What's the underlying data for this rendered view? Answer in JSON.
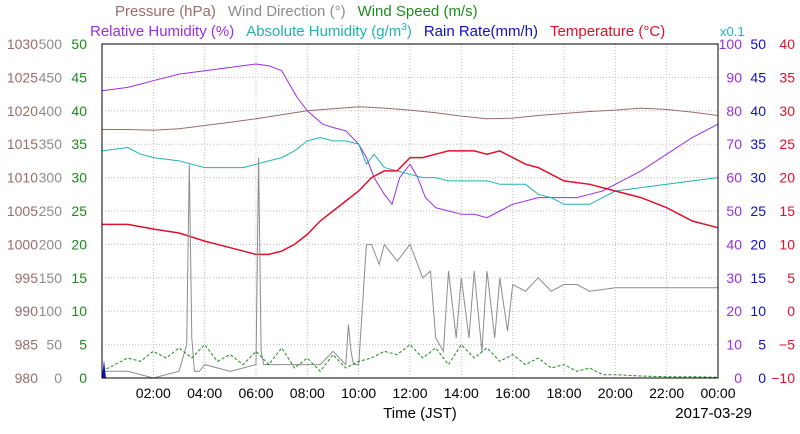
{
  "chart_data": {
    "type": "line",
    "title_rows": [
      [
        {
          "key": "pressure",
          "text": "Pressure (hPa)",
          "color": "#9b6b6b"
        },
        {
          "key": "wind_direction",
          "text": "Wind Direction (°)",
          "color": "#8c8c8c"
        },
        {
          "key": "wind_speed",
          "text": "Wind Speed (m/s)",
          "color": "#1a8c1a"
        }
      ],
      [
        {
          "key": "relative_humidity",
          "text": "Relative Humidity (%)",
          "color": "#9c2ee0"
        },
        {
          "key": "absolute_humidity",
          "text": "Absolute Humidity (g/m",
          "sup": "3",
          "tail": ")",
          "color": "#20b2b2"
        },
        {
          "key": "rain_rate",
          "text": "Rain Rate(mm/h)",
          "color": "#1010c0"
        },
        {
          "key": "temperature",
          "text": "Temperature (°C)",
          "color": "#e0102a"
        }
      ]
    ],
    "rain_multiplier": "x0.1",
    "xlabel": "Time (JST)",
    "date": "2017-03-29",
    "x_range_hours": [
      0,
      24
    ],
    "x_ticks": [
      "02:00",
      "04:00",
      "06:00",
      "08:00",
      "10:00",
      "12:00",
      "14:00",
      "16:00",
      "18:00",
      "20:00",
      "22:00",
      "00:00"
    ],
    "grid": true,
    "axes": [
      {
        "key": "pressure",
        "side": "left",
        "color": "#9b6b6b",
        "min": 980,
        "max": 1030,
        "ticks": [
          "980",
          "985",
          "990",
          "995",
          "1000",
          "1005",
          "1010",
          "1015",
          "1020",
          "1025",
          "1030"
        ]
      },
      {
        "key": "wind_direction",
        "side": "left",
        "color": "#8c8c8c",
        "min": 0,
        "max": 500,
        "ticks": [
          "0",
          "50",
          "100",
          "150",
          "200",
          "250",
          "300",
          "350",
          "400",
          "450",
          "500"
        ]
      },
      {
        "key": "wind_speed",
        "side": "left",
        "color": "#1a8c1a",
        "min": 0,
        "max": 50,
        "ticks": [
          "0",
          "5",
          "10",
          "15",
          "20",
          "25",
          "30",
          "35",
          "40",
          "45",
          "50"
        ]
      },
      {
        "key": "relative_humidity",
        "side": "right",
        "color": "#9c2ee0",
        "min": 0,
        "max": 100,
        "ticks": [
          "0",
          "10",
          "20",
          "30",
          "40",
          "50",
          "60",
          "70",
          "80",
          "90",
          "100"
        ]
      },
      {
        "key": "rain_rate",
        "side": "right",
        "color": "#1010c0",
        "min": 0,
        "max": 50,
        "ticks": [
          "0",
          "5",
          "10",
          "15",
          "20",
          "25",
          "30",
          "35",
          "40",
          "45",
          "50"
        ]
      },
      {
        "key": "temperature",
        "side": "right",
        "color": "#e0102a",
        "min": -10,
        "max": 40,
        "ticks": [
          "−10",
          "−5",
          "0",
          "5",
          "10",
          "15",
          "20",
          "25",
          "30",
          "35",
          "40"
        ]
      }
    ],
    "series": [
      {
        "key": "pressure",
        "color": "#9b6b6b",
        "axis": "pressure",
        "x": [
          0,
          1,
          2,
          3,
          4,
          5,
          6,
          7,
          8,
          9,
          10,
          11,
          12,
          13,
          14,
          15,
          16,
          17,
          18,
          19,
          20,
          21,
          22,
          23,
          24
        ],
        "y": [
          1017.2,
          1017.2,
          1017.1,
          1017.3,
          1017.8,
          1018.3,
          1018.8,
          1019.4,
          1020.0,
          1020.3,
          1020.6,
          1020.4,
          1020.1,
          1019.7,
          1019.2,
          1018.8,
          1018.9,
          1019.3,
          1019.6,
          1019.9,
          1020.1,
          1020.4,
          1020.2,
          1019.8,
          1019.3
        ]
      },
      {
        "key": "relative_humidity",
        "color": "#9c2ee0",
        "axis": "relative_humidity",
        "x": [
          0,
          1,
          1.5,
          2,
          3,
          4,
          5,
          6,
          6.5,
          7,
          7.3,
          7.6,
          8,
          8.3,
          8.6,
          9,
          9.5,
          10,
          10.3,
          10.6,
          11,
          11.3,
          11.6,
          12,
          12.3,
          12.6,
          13,
          13.5,
          14,
          14.5,
          15,
          15.5,
          16,
          16.5,
          17,
          17.5,
          18,
          18.5,
          19,
          19.5,
          20,
          21,
          22,
          23,
          24
        ],
        "y": [
          86,
          87,
          88,
          89,
          91,
          92,
          93,
          94,
          93.5,
          92,
          88,
          84,
          80,
          78,
          76,
          75,
          74,
          70,
          66,
          60,
          55,
          52,
          60,
          64,
          60,
          54,
          51,
          50,
          49,
          49,
          48,
          50,
          52,
          53,
          54,
          54,
          54,
          54,
          55,
          56,
          58,
          62,
          67,
          72,
          76
        ]
      },
      {
        "key": "absolute_humidity",
        "color": "#20b2b2",
        "axis": "rain_rate",
        "x": [
          0,
          1,
          1.5,
          2,
          3,
          3.5,
          4,
          4.5,
          5,
          5.5,
          6,
          6.5,
          7,
          7.5,
          8,
          8.5,
          9,
          9.5,
          10,
          10.3,
          10.6,
          11,
          11.5,
          12,
          12.5,
          13,
          13.5,
          14,
          14.5,
          15,
          15.5,
          16,
          16.5,
          17,
          17.5,
          18,
          19,
          20,
          21,
          22,
          23,
          24
        ],
        "y": [
          34,
          34.5,
          33.5,
          33,
          32.5,
          32,
          31.5,
          31.5,
          31.5,
          31.5,
          32,
          32.5,
          33,
          34,
          35.5,
          36,
          35.5,
          35.5,
          35,
          32,
          33.5,
          31.5,
          31,
          30.5,
          30,
          30,
          29.5,
          29.5,
          29.5,
          29.5,
          29,
          29,
          29,
          27.5,
          27,
          26,
          26,
          28,
          28.5,
          29,
          29.5,
          30
        ]
      },
      {
        "key": "temperature",
        "color": "#e0102a",
        "axis": "temperature",
        "x": [
          0,
          1,
          2,
          3,
          4,
          5,
          6,
          6.5,
          7,
          7.5,
          8,
          8.5,
          9,
          9.5,
          10,
          10.5,
          11,
          11.5,
          12,
          12.5,
          13,
          13.5,
          14,
          14.5,
          15,
          15.5,
          16,
          16.5,
          17,
          18,
          19,
          20,
          21,
          22,
          23,
          24
        ],
        "y": [
          13,
          13,
          12.3,
          11.7,
          10.5,
          9.5,
          8.5,
          8.5,
          9,
          10,
          11.5,
          13.5,
          15,
          16.5,
          18,
          20,
          21,
          21,
          23,
          23,
          23.5,
          24,
          24,
          24,
          23.5,
          24,
          23,
          22,
          21.5,
          19.5,
          19,
          18,
          17,
          15.5,
          13.5,
          12.5
        ]
      },
      {
        "key": "wind_direction",
        "color": "#8c8c8c",
        "axis": "wind_direction",
        "x": [
          0,
          1,
          2,
          3,
          3.3,
          3.4,
          3.5,
          3.6,
          3.8,
          4,
          5,
          6,
          6.1,
          6.2,
          6.3,
          6.5,
          7,
          7.5,
          8,
          8.5,
          9,
          9.5,
          9.6,
          9.7,
          9.8,
          10,
          10.3,
          10.5,
          10.8,
          11,
          11.5,
          12,
          12.5,
          12.8,
          13,
          13.3,
          13.5,
          13.8,
          14,
          14.3,
          14.5,
          14.8,
          15,
          15.3,
          15.5,
          15.8,
          16,
          16.5,
          17,
          17.5,
          18,
          18.5,
          19,
          20,
          21,
          22,
          23,
          24
        ],
        "y": [
          10,
          10,
          0,
          10,
          50,
          320,
          60,
          10,
          10,
          20,
          10,
          20,
          330,
          40,
          20,
          20,
          20,
          20,
          20,
          20,
          40,
          20,
          80,
          40,
          20,
          20,
          200,
          200,
          170,
          200,
          175,
          200,
          150,
          160,
          60,
          40,
          160,
          60,
          150,
          60,
          160,
          40,
          160,
          60,
          150,
          70,
          140,
          130,
          150,
          130,
          140,
          140,
          130,
          135,
          135,
          135,
          135,
          135
        ]
      },
      {
        "key": "wind_speed",
        "color": "#1a8c1a",
        "axis": "wind_speed",
        "x": [
          0,
          0.5,
          1,
          1.5,
          2,
          2.5,
          3,
          3.5,
          4,
          4.5,
          5,
          5.5,
          6,
          6.5,
          7,
          7.5,
          8,
          8.5,
          9,
          9.5,
          10,
          10.5,
          11,
          11.5,
          12,
          12.5,
          13,
          13.5,
          14,
          14.5,
          15,
          15.5,
          16,
          16.5,
          17,
          17.5,
          18,
          18.5,
          19,
          19.5,
          20,
          21,
          22,
          23,
          24
        ],
        "y": [
          1,
          2,
          3,
          2.5,
          4,
          3,
          4.5,
          3,
          5,
          2.5,
          3.5,
          2,
          4,
          2,
          4.5,
          1.5,
          3,
          1,
          3.5,
          1.5,
          2.5,
          3,
          4,
          3.5,
          5,
          3,
          4.5,
          2,
          5,
          3,
          4.5,
          2.5,
          3.5,
          2,
          3,
          1.5,
          2,
          1,
          1.5,
          0.5,
          0.5,
          0.3,
          0.2,
          0.2,
          0.1
        ]
      }
    ]
  }
}
